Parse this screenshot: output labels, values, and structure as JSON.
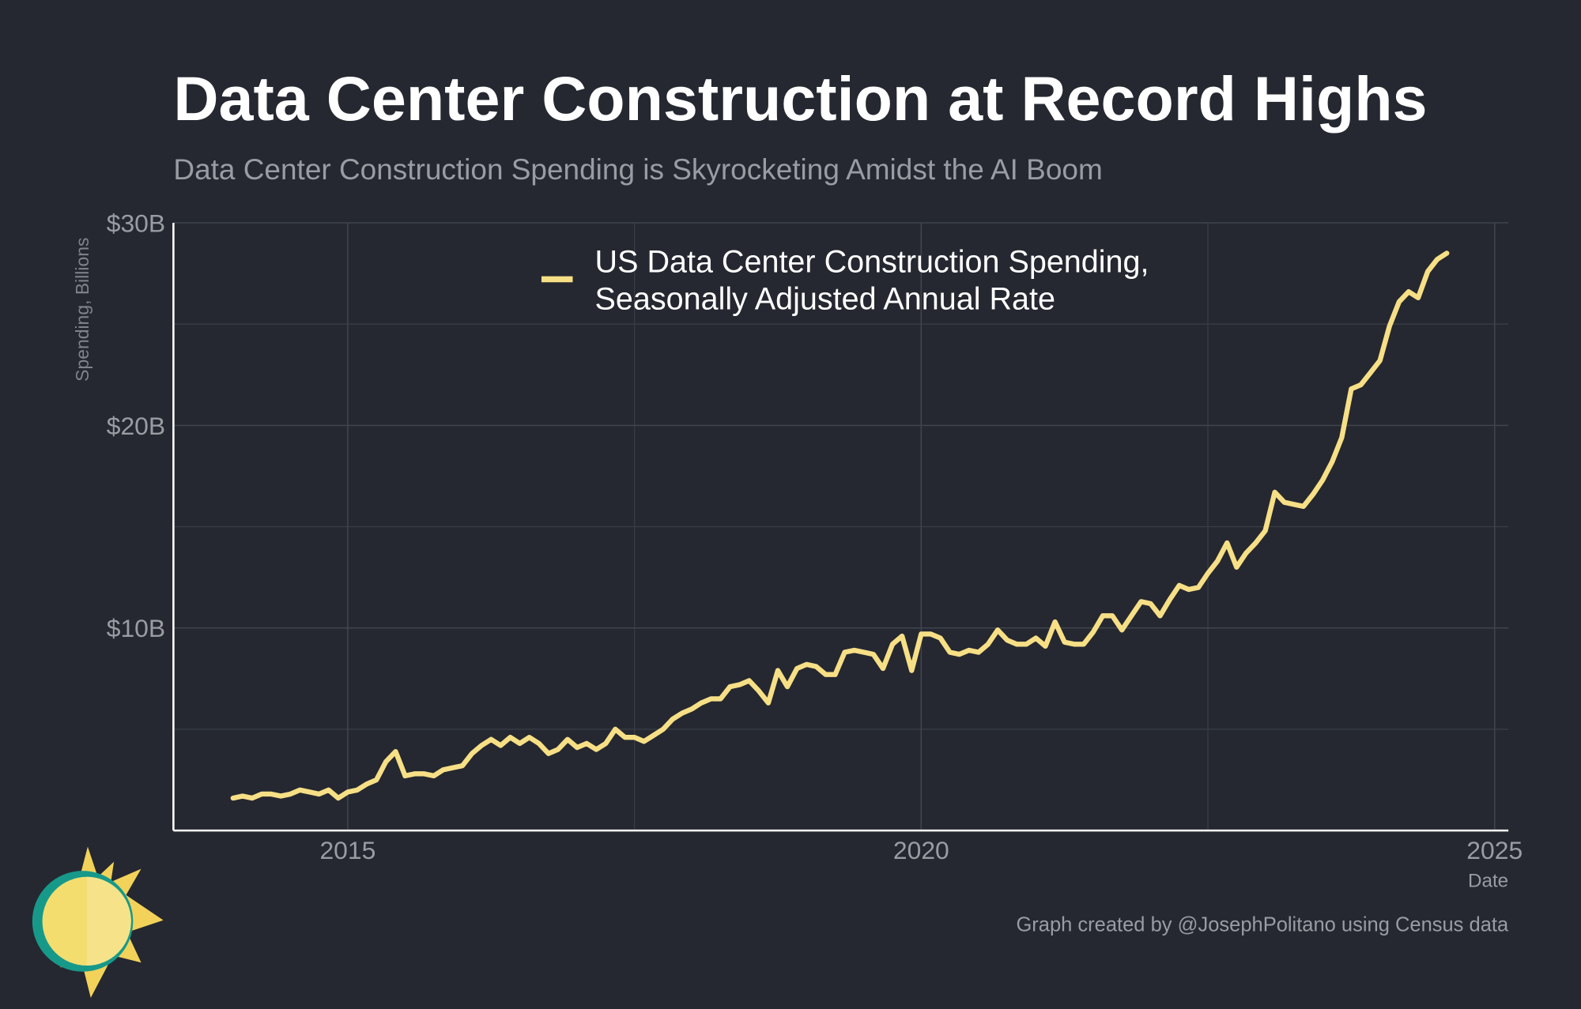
{
  "chart_data": {
    "type": "line",
    "title": "Data Center Construction at Record Highs",
    "subtitle": "Data Center Construction Spending is Skyrocketing Amidst the AI Boom",
    "y_label": "Spending, Billions",
    "x_label": "Date",
    "credit": "Graph created by @JosephPolitano using Census data",
    "xlim": [
      2013.48,
      2025.12
    ],
    "ylim": [
      0,
      30
    ],
    "xticks": [
      2015,
      2020,
      2025
    ],
    "yticks": [
      {
        "value": 10,
        "label": "$10B"
      },
      {
        "value": 20,
        "label": "$20B"
      },
      {
        "value": 30,
        "label": "$30B"
      }
    ],
    "minor_xticks": [
      2017.5,
      2022.5
    ],
    "minor_yticks": [
      5,
      15,
      25
    ],
    "grid": true,
    "legend": "top",
    "x": [
      2014,
      2014.083,
      2014.167,
      2014.25,
      2014.333,
      2014.417,
      2014.5,
      2014.583,
      2014.667,
      2014.75,
      2014.833,
      2014.917,
      2015,
      2015.083,
      2015.167,
      2015.25,
      2015.333,
      2015.417,
      2015.5,
      2015.583,
      2015.667,
      2015.75,
      2015.833,
      2015.917,
      2016,
      2016.083,
      2016.167,
      2016.25,
      2016.333,
      2016.417,
      2016.5,
      2016.583,
      2016.667,
      2016.75,
      2016.833,
      2016.917,
      2017,
      2017.083,
      2017.167,
      2017.25,
      2017.333,
      2017.417,
      2017.5,
      2017.583,
      2017.667,
      2017.75,
      2017.833,
      2017.917,
      2018,
      2018.083,
      2018.167,
      2018.25,
      2018.333,
      2018.417,
      2018.5,
      2018.583,
      2018.667,
      2018.75,
      2018.833,
      2018.917,
      2019,
      2019.083,
      2019.167,
      2019.25,
      2019.333,
      2019.417,
      2019.5,
      2019.583,
      2019.667,
      2019.75,
      2019.833,
      2019.917,
      2020,
      2020.083,
      2020.167,
      2020.25,
      2020.333,
      2020.417,
      2020.5,
      2020.583,
      2020.667,
      2020.75,
      2020.833,
      2020.917,
      2021,
      2021.083,
      2021.167,
      2021.25,
      2021.333,
      2021.417,
      2021.5,
      2021.583,
      2021.667,
      2021.75,
      2021.833,
      2021.917,
      2022,
      2022.083,
      2022.167,
      2022.25,
      2022.333,
      2022.417,
      2022.5,
      2022.583,
      2022.667,
      2022.75,
      2022.833,
      2022.917,
      2023,
      2023.083,
      2023.167,
      2023.25,
      2023.333,
      2023.417,
      2023.5,
      2023.583,
      2023.667,
      2023.75,
      2023.833,
      2023.917,
      2024,
      2024.083,
      2024.167,
      2024.25,
      2024.333,
      2024.417,
      2024.5,
      2024.583
    ],
    "series": [
      {
        "name": "US Data Center Construction Spending, Seasonally Adjusted Annual Rate",
        "color": "#f7df86",
        "values": [
          1.6,
          1.7,
          1.6,
          1.8,
          1.8,
          1.7,
          1.8,
          2.0,
          1.9,
          1.8,
          2.0,
          1.6,
          1.9,
          2.0,
          2.3,
          2.5,
          3.4,
          3.9,
          2.7,
          2.8,
          2.8,
          2.7,
          3.0,
          3.1,
          3.2,
          3.8,
          4.2,
          4.5,
          4.2,
          4.6,
          4.3,
          4.6,
          4.3,
          3.8,
          4.0,
          4.5,
          4.1,
          4.3,
          4.0,
          4.3,
          5.0,
          4.6,
          4.6,
          4.4,
          4.7,
          5.0,
          5.5,
          5.8,
          6.0,
          6.3,
          6.5,
          6.5,
          7.1,
          7.2,
          7.4,
          6.9,
          6.3,
          7.9,
          7.1,
          8.0,
          8.2,
          8.1,
          7.7,
          7.7,
          8.8,
          8.9,
          8.8,
          8.7,
          8.0,
          9.2,
          9.6,
          7.9,
          9.7,
          9.7,
          9.5,
          8.8,
          8.7,
          8.9,
          8.8,
          9.2,
          9.9,
          9.4,
          9.2,
          9.2,
          9.5,
          9.1,
          10.3,
          9.3,
          9.2,
          9.2,
          9.8,
          10.6,
          10.6,
          9.9,
          10.6,
          11.3,
          11.2,
          10.6,
          11.4,
          12.1,
          11.9,
          12.0,
          12.7,
          13.3,
          14.2,
          13.0,
          13.7,
          14.2,
          14.8,
          16.7,
          16.2,
          16.1,
          16.0,
          16.6,
          17.3,
          18.2,
          19.4,
          21.8,
          22.0,
          22.6,
          23.2,
          24.9,
          26.1,
          26.6,
          26.3,
          27.6,
          28.2,
          28.5
        ]
      }
    ]
  }
}
